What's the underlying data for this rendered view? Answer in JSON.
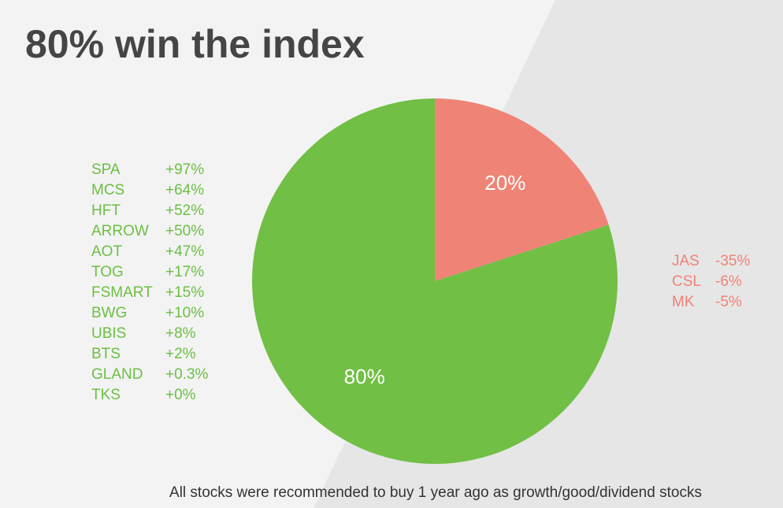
{
  "chart_data": {
    "type": "pie",
    "title": "80% win the index",
    "values": [
      20,
      80
    ],
    "value_labels": [
      "20%",
      "80%"
    ],
    "colors": [
      "#ef8476",
      "#71bf44"
    ],
    "gainers": [
      {
        "name": "SPA",
        "change": "+97%"
      },
      {
        "name": "MCS",
        "change": "+64%"
      },
      {
        "name": "HFT",
        "change": "+52%"
      },
      {
        "name": "ARROW",
        "change": "+50%"
      },
      {
        "name": "AOT",
        "change": "+47%"
      },
      {
        "name": "TOG",
        "change": "+17%"
      },
      {
        "name": "FSMART",
        "change": "+15%"
      },
      {
        "name": "BWG",
        "change": "+10%"
      },
      {
        "name": "UBIS",
        "change": "+8%"
      },
      {
        "name": "BTS",
        "change": "+2%"
      },
      {
        "name": "GLAND",
        "change": "+0.3%"
      },
      {
        "name": "TKS",
        "change": "+0%"
      }
    ],
    "losers": [
      {
        "name": "JAS",
        "change": "-35%"
      },
      {
        "name": "CSL",
        "change": "-6%"
      },
      {
        "name": "MK",
        "change": "-5%"
      }
    ],
    "caption": "All stocks were recommended to buy 1 year ago as growth/good/dividend stocks"
  }
}
